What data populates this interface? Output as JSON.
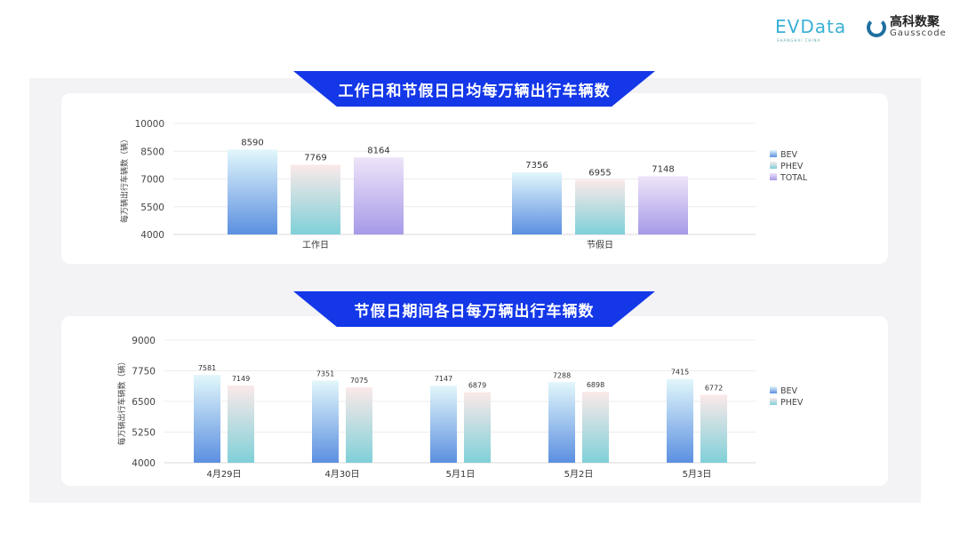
{
  "logos": {
    "evdata": "EVData",
    "evdata_sub": "SHANGHAI CHINA",
    "gauss_cn": "高科数聚",
    "gauss_en": "Gausscode"
  },
  "colors": {
    "banner": "#1437e8",
    "BEV": [
      "#e2f7fb",
      "#5b8fe0"
    ],
    "PHEV": [
      "#fbe9e9",
      "#7fd0d8"
    ],
    "TOTAL": [
      "#eee4f8",
      "#a79ae8"
    ]
  },
  "chart_data": [
    {
      "type": "bar",
      "title": "工作日和节假日日均每万辆出行车辆数",
      "ylabel": "每万辆出行车辆数（辆）",
      "xlabel": "",
      "categories": [
        "工作日",
        "节假日"
      ],
      "series": [
        {
          "name": "BEV",
          "values": [
            8590,
            7356
          ]
        },
        {
          "name": "PHEV",
          "values": [
            7769,
            6955
          ]
        },
        {
          "name": "TOTAL",
          "values": [
            8164,
            7148
          ]
        }
      ],
      "ylim": [
        4000,
        10000
      ],
      "yticks": [
        4000,
        5500,
        7000,
        8500,
        10000
      ],
      "grid": true,
      "legend": "right"
    },
    {
      "type": "bar",
      "title": "节假日期间各日每万辆出行车辆数",
      "ylabel": "每万辆出行车辆数（辆）",
      "xlabel": "",
      "categories": [
        "4月29日",
        "4月30日",
        "5月1日",
        "5月2日",
        "5月3日"
      ],
      "series": [
        {
          "name": "BEV",
          "values": [
            7581,
            7351,
            7147,
            7288,
            7415
          ]
        },
        {
          "name": "PHEV",
          "values": [
            7149,
            7075,
            6879,
            6898,
            6772
          ]
        }
      ],
      "ylim": [
        4000,
        9000
      ],
      "yticks": [
        4000,
        5250,
        6500,
        7750,
        9000
      ],
      "grid": true,
      "legend": "right"
    }
  ]
}
